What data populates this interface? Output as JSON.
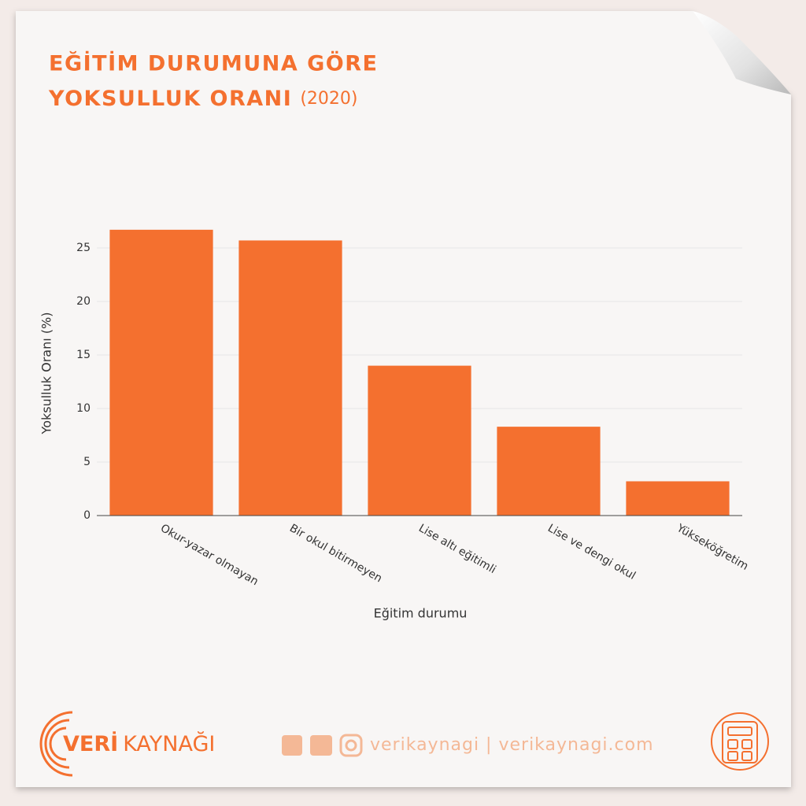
{
  "chart_data": {
    "type": "bar",
    "title": [
      "EĞİTİM DURUMUNA GÖRE",
      "YOKSULLUK ORANI"
    ],
    "title_year": "(2020)",
    "x_label": "Eğitim durumu",
    "y_label": "Yoksulluk Oranı (%)",
    "categories": [
      "Okur-yazar olmayan",
      "Bir okul bitirmeyen",
      "Lise altı eğitimli",
      "Lise ve dengi okul",
      "Yükseköğretim"
    ],
    "values": [
      26.7,
      25.7,
      14.0,
      8.3,
      3.2
    ],
    "color": "#f4702f",
    "ylim": [
      0,
      27
    ],
    "yticks": [
      0,
      5,
      10,
      15,
      20,
      25
    ],
    "grid": true
  },
  "brand": {
    "name_bold": "VERİ",
    "name": "KAYNAĞI",
    "social": "verikaynagi | verikaynagi.com"
  }
}
